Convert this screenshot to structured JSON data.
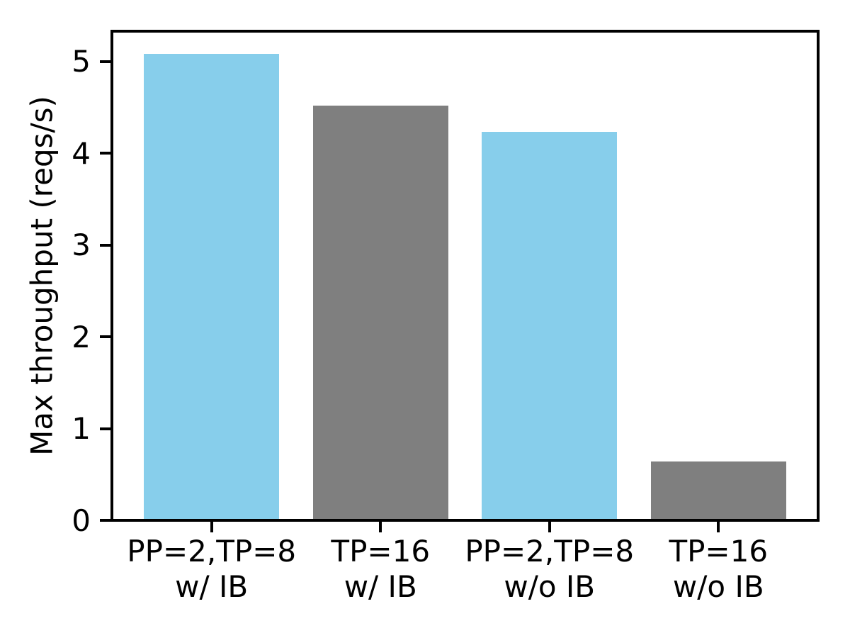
{
  "figure": {
    "background": "#ffffff",
    "axis_color": "#000000"
  },
  "chart_data": {
    "type": "bar",
    "title": "",
    "xlabel": "",
    "ylabel": "Max throughput (reqs/s)",
    "categories": [
      "PP=2,TP=8\nw/ IB",
      "TP=16\nw/ IB",
      "PP=2,TP=8\nw/o IB",
      "TP=16\nw/o IB"
    ],
    "values": [
      5.08,
      4.52,
      4.23,
      0.64
    ],
    "bar_colors": [
      "#87ceeb",
      "#7f7f7f",
      "#87ceeb",
      "#7f7f7f"
    ],
    "ylim": [
      0,
      5.33
    ],
    "yticks": [
      0,
      1,
      2,
      3,
      4,
      5
    ],
    "grid": false,
    "legend": "none",
    "bar_width_fraction": 0.8
  }
}
